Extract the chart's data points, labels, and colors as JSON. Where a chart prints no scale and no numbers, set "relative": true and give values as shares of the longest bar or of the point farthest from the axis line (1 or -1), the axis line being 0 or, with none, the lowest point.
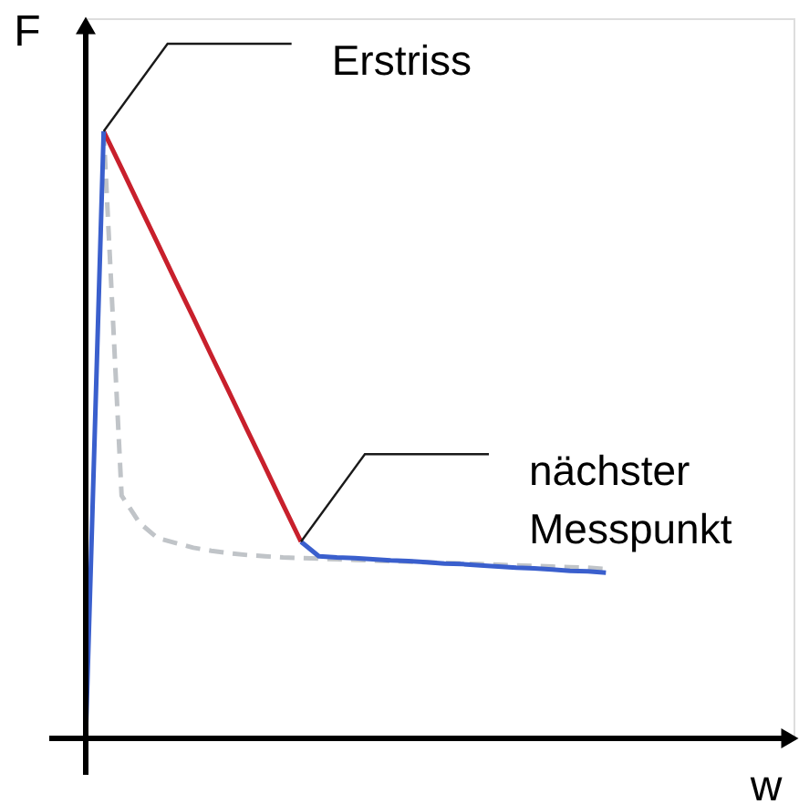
{
  "chart_data": {
    "type": "line",
    "relative": true,
    "xlabel": "w",
    "ylabel": "F",
    "grid": false,
    "annotations": [
      "Erstriss",
      "nächster\nMesspunkt"
    ],
    "categories": [
      null,
      null,
      null,
      null,
      null,
      null,
      null,
      null,
      null,
      null,
      null,
      null,
      null,
      null,
      null,
      null,
      null,
      null,
      null,
      null,
      null,
      null,
      null,
      null,
      null,
      null,
      null,
      null,
      null,
      null
    ],
    "series": [
      {
        "color": "#c0c4c8",
        "line_style": "dashed",
        "values": [
          null,
          1,
          0.4,
          0.355,
          0.33,
          0.322,
          0.314,
          0.309,
          0.305,
          0.302,
          0.3,
          0.298,
          0.297,
          0.296,
          0.295,
          0.294,
          0.293,
          0.292,
          0.291,
          0.29,
          0.289,
          0.288,
          0.287,
          0.286,
          0.285,
          0.284,
          0.283,
          0.282,
          0.281,
          0.279
        ]
      },
      {
        "color": "#c8202c",
        "line_style": "solid",
        "values": [
          null,
          1,
          0.939,
          0.877,
          0.816,
          0.754,
          0.693,
          0.631,
          0.57,
          0.508,
          0.447,
          0.385,
          0.324,
          null,
          null,
          null,
          null,
          null,
          null,
          null,
          null,
          null,
          null,
          null,
          null,
          null,
          null,
          null,
          null,
          null
        ]
      },
      {
        "color": "#3a5fcd",
        "line_style": "solid",
        "values": [
          0,
          1,
          null,
          null,
          null,
          null,
          null,
          null,
          null,
          null,
          null,
          null,
          0.324,
          0.3,
          0.298,
          0.297,
          0.295,
          0.293,
          0.292,
          0.29,
          0.288,
          0.287,
          0.285,
          0.283,
          0.281,
          0.28,
          0.278,
          0.276,
          0.275,
          0.273
        ]
      }
    ]
  }
}
